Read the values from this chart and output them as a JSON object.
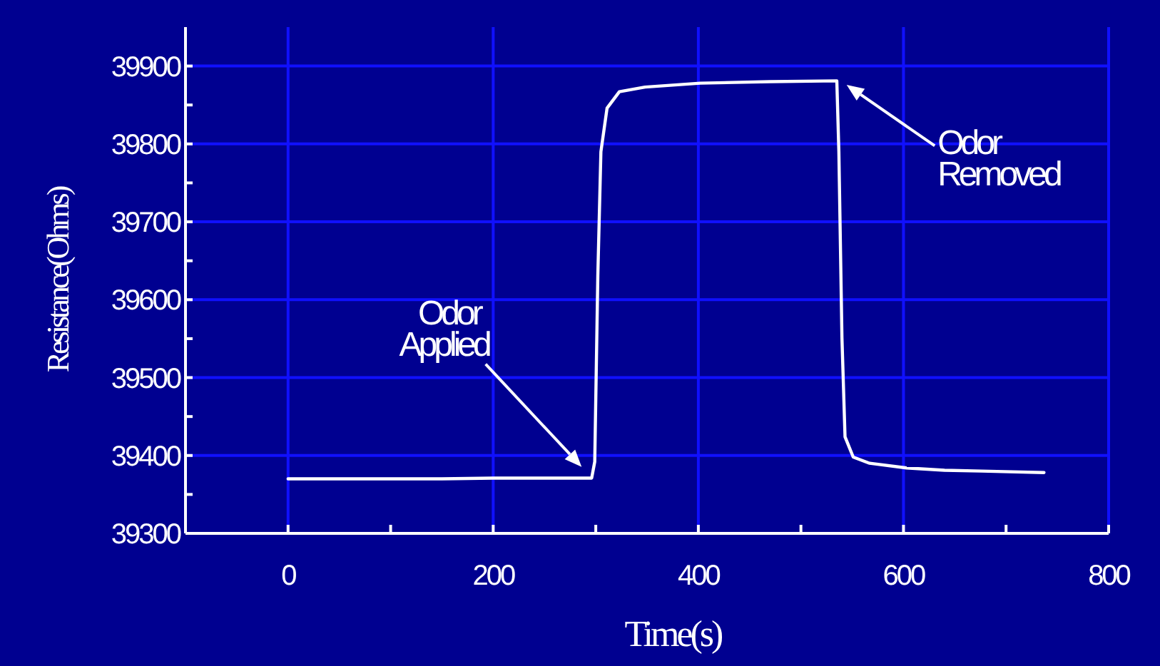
{
  "chart_data": {
    "type": "line",
    "xlabel": "Time(s)",
    "ylabel": "Resistance(Ohms)",
    "x": [
      0,
      50,
      100,
      150,
      200,
      250,
      296,
      299,
      302,
      305,
      311,
      323,
      348,
      402,
      470,
      535,
      537,
      540,
      543,
      551,
      567,
      603,
      640,
      676,
      737
    ],
    "series": [
      {
        "color": "#ffffff",
        "values": [
          39370,
          39370,
          39370,
          39370,
          39371,
          39371,
          39371,
          39392,
          39631,
          39790,
          39846,
          39867,
          39873,
          39878,
          39880,
          39881,
          39790,
          39551,
          39424,
          39398,
          39390,
          39384,
          39381,
          39380,
          39378
        ]
      }
    ],
    "xlim": [
      -100,
      800
    ],
    "xticks": [
      0,
      {
        "value": 100,
        "label": null
      },
      200,
      {
        "value": 300,
        "label": null
      },
      400,
      {
        "value": 500,
        "label": null
      },
      600,
      {
        "value": 700,
        "label": null
      },
      800
    ],
    "ylim": [
      39300,
      39950
    ],
    "yticks": [
      39300,
      {
        "value": 39350,
        "label": null
      },
      39400,
      {
        "value": 39450,
        "label": null
      },
      39500,
      {
        "value": 39550,
        "label": null
      },
      39600,
      {
        "value": 39650,
        "label": null
      },
      39700,
      {
        "value": 39750,
        "label": null
      },
      39800,
      {
        "value": 39850,
        "label": null
      },
      39900
    ],
    "grid": true,
    "marker": "none",
    "line_style": "solid",
    "annotations": [
      "Odor Applied",
      "Odor Removed"
    ]
  }
}
